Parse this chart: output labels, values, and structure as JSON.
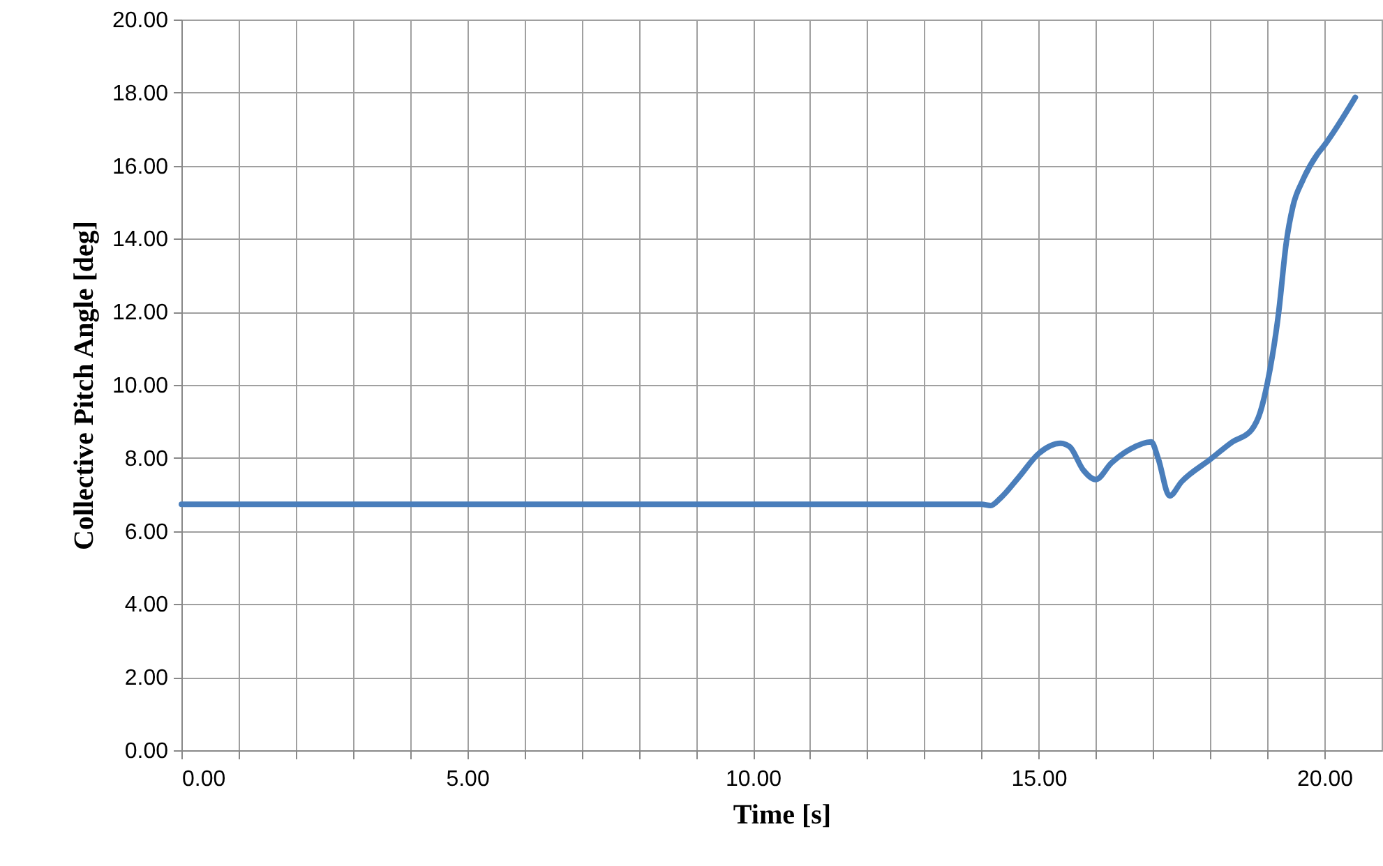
{
  "chart_data": {
    "type": "line",
    "xlabel": "Time [s]",
    "ylabel": "Collective Pitch Angle [deg]",
    "x": [
      0,
      14.0,
      14.16,
      14.33,
      14.65,
      15.0,
      15.38,
      15.54,
      15.78,
      16.0,
      16.27,
      16.6,
      16.97,
      17.09,
      17.29,
      17.5,
      18.0,
      18.39,
      18.72,
      18.88,
      19.0,
      19.2,
      19.33,
      19.45,
      19.62,
      19.87,
      20.0,
      20.54
    ],
    "series": [
      {
        "color": "#4a7ebb",
        "values": [
          6.73,
          6.73,
          6.7,
          6.9,
          7.47,
          8.12,
          8.4,
          8.31,
          7.67,
          7.41,
          7.86,
          8.24,
          8.44,
          7.99,
          6.96,
          7.35,
          7.96,
          8.44,
          8.76,
          9.27,
          10.04,
          12.0,
          13.87,
          14.9,
          15.6,
          16.3,
          16.56,
          17.87
        ]
      }
    ],
    "xlim": [
      0,
      21
    ],
    "xticks": [
      {
        "value": 0,
        "label": "0.00"
      },
      {
        "value": 1,
        "label": null
      },
      {
        "value": 2,
        "label": null
      },
      {
        "value": 3,
        "label": null
      },
      {
        "value": 4,
        "label": null
      },
      {
        "value": 5,
        "label": "5.00"
      },
      {
        "value": 6,
        "label": null
      },
      {
        "value": 7,
        "label": null
      },
      {
        "value": 8,
        "label": null
      },
      {
        "value": 9,
        "label": null
      },
      {
        "value": 10,
        "label": "10.00"
      },
      {
        "value": 11,
        "label": null
      },
      {
        "value": 12,
        "label": null
      },
      {
        "value": 13,
        "label": null
      },
      {
        "value": 14,
        "label": null
      },
      {
        "value": 15,
        "label": "15.00"
      },
      {
        "value": 16,
        "label": null
      },
      {
        "value": 17,
        "label": null
      },
      {
        "value": 18,
        "label": null
      },
      {
        "value": 19,
        "label": null
      },
      {
        "value": 20,
        "label": "20.00"
      }
    ],
    "ylim": [
      0,
      20
    ],
    "yticks": [
      {
        "value": 0,
        "label": "0.00"
      },
      {
        "value": 2,
        "label": "2.00"
      },
      {
        "value": 4,
        "label": "4.00"
      },
      {
        "value": 6,
        "label": "6.00"
      },
      {
        "value": 8,
        "label": "8.00"
      },
      {
        "value": 10,
        "label": "10.00"
      },
      {
        "value": 12,
        "label": "12.00"
      },
      {
        "value": 14,
        "label": "14.00"
      },
      {
        "value": 16,
        "label": "16.00"
      },
      {
        "value": 18,
        "label": "18.00"
      },
      {
        "value": 20,
        "label": "20.00"
      }
    ],
    "grid": true,
    "marker": "none",
    "line_style": "solid"
  }
}
